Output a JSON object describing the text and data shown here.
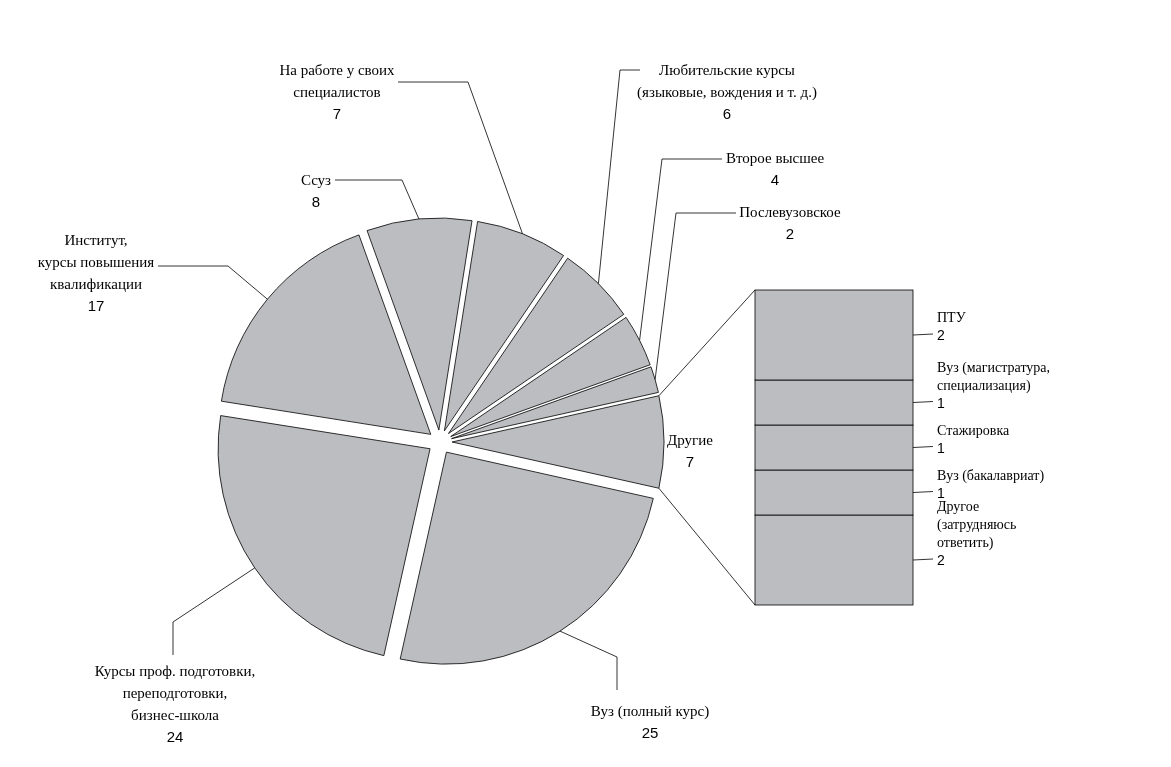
{
  "chart_data": [
    {
      "type": "pie",
      "categories": [
        "Другие",
        "Вуз (полный курс)",
        "Курсы проф. подготовки,\nпереподготовки,\nбизнес-школа",
        "Институт,\nкурсы повышения\nквалификации",
        "Ссуз",
        "На работе у своих\nспециалистов",
        "Любительские курсы\n(языковые, вождения и т. д.)",
        "Второе высшее",
        "Послевузовское"
      ],
      "values": [
        7,
        25,
        24,
        17,
        8,
        7,
        6,
        4,
        2
      ],
      "colors": [
        "#bcbdc1",
        "#bcbdc1",
        "#bcbdc1",
        "#bcbdc1",
        "#bcbdc1",
        "#bcbdc1",
        "#bcbdc1",
        "#bcbdc1",
        "#bcbdc1"
      ],
      "data_labels": true
    },
    {
      "type": "bar",
      "stacked": true,
      "categories": [
        null
      ],
      "data_labels": true,
      "series": [
        {
          "name": "Другое\n(затрудняюсь\nответить)",
          "color": "#bcbdc1",
          "values": [
            2
          ]
        },
        {
          "name": "Вуз (бакалавриат)",
          "color": "#bcbdc1",
          "values": [
            1
          ]
        },
        {
          "name": "Стажировка",
          "color": "#bcbdc1",
          "values": [
            1
          ]
        },
        {
          "name": "Вуз (магистратура,\nспециализация)",
          "color": "#bcbdc1",
          "values": [
            1
          ]
        },
        {
          "name": "ПТУ",
          "color": "#bcbdc1",
          "values": [
            2
          ]
        }
      ]
    }
  ]
}
